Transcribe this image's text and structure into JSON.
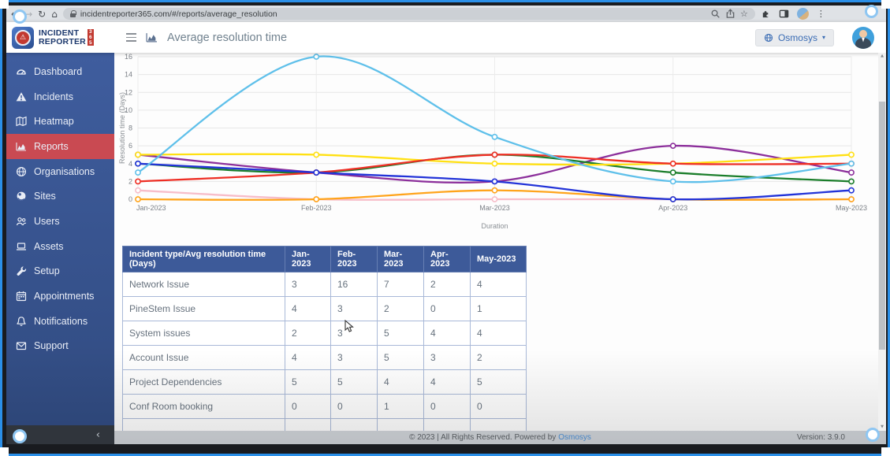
{
  "browser": {
    "url": "incidentreporter365.com/#/reports/average_resolution"
  },
  "logo": {
    "line1": "INCIDENT",
    "line2": "REPORTER",
    "badge_digits": [
      "3",
      "6",
      "5"
    ]
  },
  "header": {
    "title": "Average resolution time",
    "org_label": "Osmosys"
  },
  "sidebar": {
    "items": [
      {
        "label": "Dashboard",
        "icon": "gauge-icon",
        "active": false
      },
      {
        "label": "Incidents",
        "icon": "warning-icon",
        "active": false
      },
      {
        "label": "Heatmap",
        "icon": "map-icon",
        "active": false
      },
      {
        "label": "Reports",
        "icon": "area-chart-icon",
        "active": true
      },
      {
        "label": "Organisations",
        "icon": "globe-icon",
        "active": false
      },
      {
        "label": "Sites",
        "icon": "globe-dot-icon",
        "active": false
      },
      {
        "label": "Users",
        "icon": "users-icon",
        "active": false
      },
      {
        "label": "Assets",
        "icon": "laptop-icon",
        "active": false
      },
      {
        "label": "Setup",
        "icon": "wrench-icon",
        "active": false
      },
      {
        "label": "Appointments",
        "icon": "calendar-icon",
        "active": false
      },
      {
        "label": "Notifications",
        "icon": "bell-icon",
        "active": false
      },
      {
        "label": "Support",
        "icon": "envelope-icon",
        "active": false
      }
    ]
  },
  "chart_data": {
    "type": "line",
    "x": [
      "Jan-2023",
      "Feb-2023",
      "Mar-2023",
      "Apr-2023",
      "May-2023"
    ],
    "series": [
      {
        "name": "Network Issue",
        "color": "#5fc0ea",
        "values": [
          3,
          16,
          7,
          2,
          4
        ]
      },
      {
        "name": "PineStem Issue",
        "color": "#2233d8",
        "values": [
          4,
          3,
          2,
          0,
          1
        ]
      },
      {
        "name": "System issues",
        "color": "#ee2e24",
        "values": [
          2,
          3,
          5,
          4,
          4
        ]
      },
      {
        "name": "Account Issue",
        "color": "#1b7e2b",
        "values": [
          4,
          3,
          5,
          3,
          2
        ]
      },
      {
        "name": "Project Dependencies",
        "color": "#ffe012",
        "values": [
          5,
          5,
          4,
          4,
          5
        ]
      },
      {
        "name": "Conf Room booking",
        "color": "#ffa41b",
        "values": [
          0,
          0,
          1,
          0,
          0
        ]
      },
      {
        "name": "(unlabeled purple series)",
        "color": "#8c2f9b",
        "values": [
          5,
          3,
          2,
          6,
          3
        ]
      },
      {
        "name": "(unlabeled pink series)",
        "color": "#f7bdc9",
        "values": [
          1,
          0,
          0,
          0,
          0
        ]
      }
    ],
    "title": "",
    "xlabel": "Duration",
    "ylabel": "Resolution time (Days)",
    "ylim": [
      0,
      16
    ],
    "yticks": [
      0,
      2,
      4,
      6,
      8,
      10,
      12,
      14,
      16
    ],
    "grid": true,
    "legend": "none",
    "markers": true
  },
  "table": {
    "headers": [
      "Incident type/Avg resolution time (Days)",
      "Jan-2023",
      "Feb-2023",
      "Mar-2023",
      "Apr-2023",
      "May-2023"
    ],
    "rows": [
      {
        "name": "Network Issue",
        "values": [
          3,
          16,
          7,
          2,
          4
        ]
      },
      {
        "name": "PineStem Issue",
        "values": [
          4,
          3,
          2,
          0,
          1
        ]
      },
      {
        "name": "System issues",
        "values": [
          2,
          3,
          5,
          4,
          4
        ]
      },
      {
        "name": "Account Issue",
        "values": [
          4,
          3,
          5,
          3,
          2
        ]
      },
      {
        "name": "Project Dependencies",
        "values": [
          5,
          5,
          4,
          4,
          5
        ]
      },
      {
        "name": "Conf Room booking",
        "values": [
          0,
          0,
          1,
          0,
          0
        ]
      }
    ],
    "partial_row_visible": true
  },
  "footer": {
    "copyright": "© 2023 | All Rights Reserved. Powered by",
    "powered_by_link": "Osmosys",
    "version": "Version: 3.9.0"
  },
  "colors": {
    "sidebar": "#3d5a99",
    "active_item": "#c94a52",
    "table_header": "#3d5a99",
    "brand_red": "#c23a31",
    "brand_navy": "#1e3a6e",
    "link_blue": "#4a90d9"
  }
}
